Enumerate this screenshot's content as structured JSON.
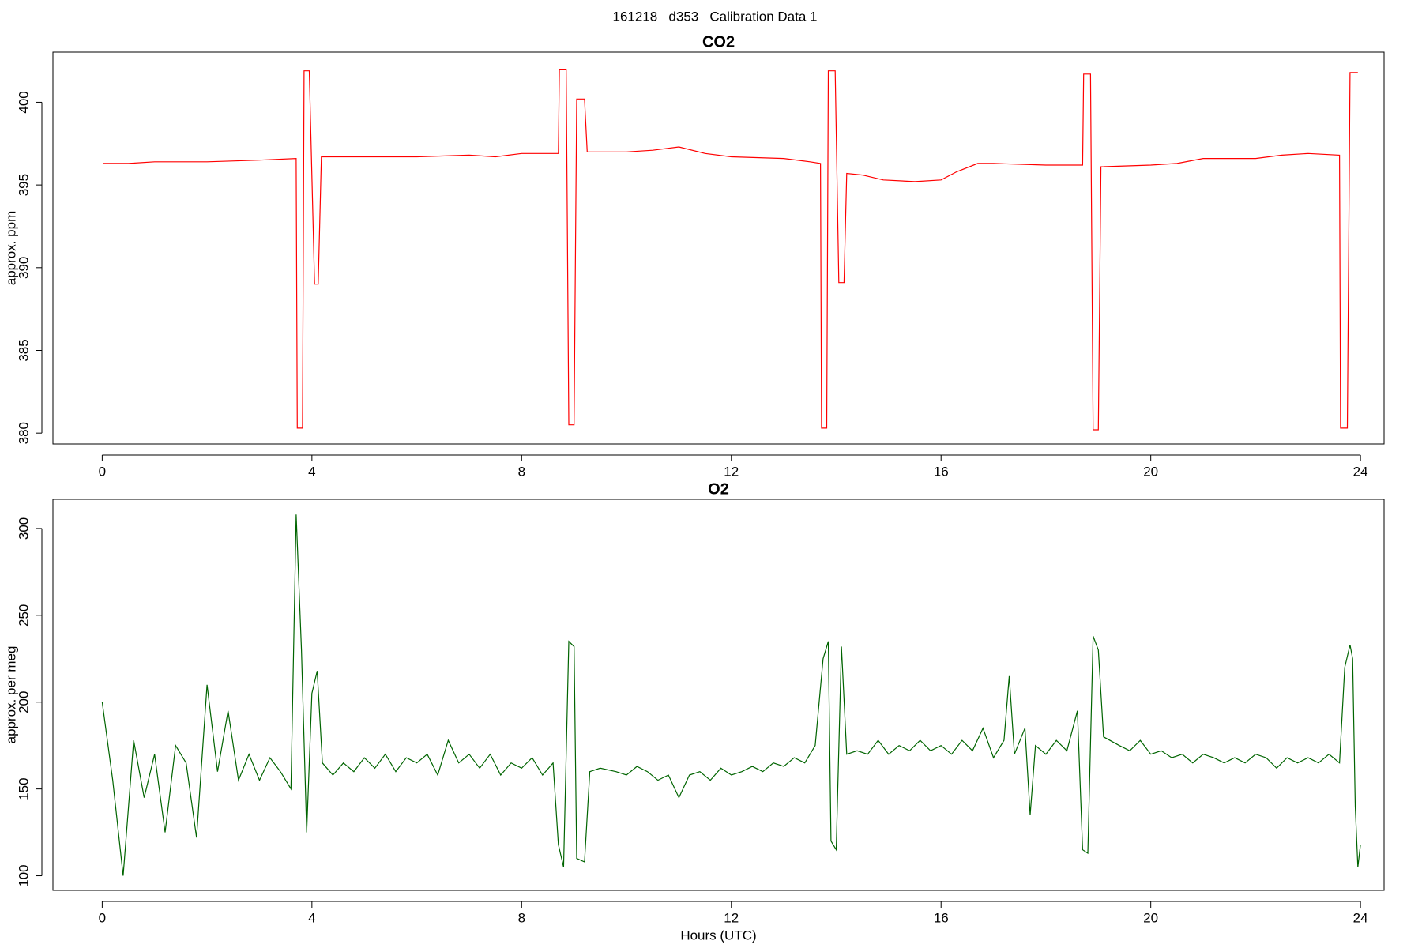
{
  "title": "161218   d353   Calibration Data 1",
  "chart_data": [
    {
      "type": "line",
      "title": "CO2",
      "ylabel": "approx. ppm",
      "color": "#ff0000",
      "xlim": [
        -0.94,
        24.45
      ],
      "xticks": [
        0,
        4,
        8,
        12,
        16,
        20,
        24
      ],
      "ylim": [
        379.34,
        403.03
      ],
      "yticks": [
        380,
        385,
        390,
        395,
        400
      ],
      "x": [
        0.02,
        0.5,
        1,
        2,
        3,
        3.7,
        3.72,
        3.82,
        3.85,
        3.95,
        4.05,
        4.12,
        4.18,
        5,
        6,
        7,
        7.5,
        8,
        8.7,
        8.72,
        8.85,
        8.9,
        9.0,
        9.05,
        9.2,
        9.25,
        10,
        10.5,
        11,
        11.5,
        12,
        13,
        13.5,
        13.7,
        13.72,
        13.82,
        13.85,
        13.98,
        14.05,
        14.15,
        14.2,
        14.5,
        14.9,
        15.5,
        16,
        16.3,
        16.7,
        17,
        18,
        18.7,
        18.72,
        18.85,
        18.9,
        19.0,
        19.05,
        20,
        20.5,
        21,
        22,
        22.5,
        23,
        23.6,
        23.62,
        23.75,
        23.8,
        23.95
      ],
      "values": [
        396.3,
        396.3,
        396.4,
        396.4,
        396.5,
        396.6,
        380.3,
        380.3,
        401.9,
        401.9,
        389,
        389,
        396.7,
        396.7,
        396.7,
        396.8,
        396.7,
        396.9,
        396.9,
        402,
        402,
        380.5,
        380.5,
        400.2,
        400.2,
        397,
        397,
        397.1,
        397.3,
        396.9,
        396.7,
        396.6,
        396.4,
        396.3,
        380.3,
        380.3,
        401.9,
        401.9,
        389.1,
        389.1,
        395.7,
        395.6,
        395.3,
        395.2,
        395.3,
        395.8,
        396.3,
        396.3,
        396.2,
        396.2,
        401.7,
        401.7,
        380.2,
        380.2,
        396.1,
        396.2,
        396.3,
        396.6,
        396.6,
        396.8,
        396.9,
        396.8,
        380.3,
        380.3,
        401.8,
        401.8
      ]
    },
    {
      "type": "line",
      "title": "O2",
      "ylabel": "approx. per meg",
      "xlabel": "Hours (UTC)",
      "color": "#006400",
      "xlim": [
        -0.94,
        24.45
      ],
      "xticks": [
        0,
        4,
        8,
        12,
        16,
        20,
        24
      ],
      "ylim": [
        91.6,
        316.8
      ],
      "yticks": [
        100,
        150,
        200,
        250,
        300
      ],
      "x": [
        0.0,
        0.2,
        0.4,
        0.6,
        0.8,
        1.0,
        1.2,
        1.4,
        1.6,
        1.8,
        2.0,
        2.2,
        2.4,
        2.6,
        2.8,
        3.0,
        3.2,
        3.4,
        3.6,
        3.7,
        3.8,
        3.9,
        4.0,
        4.1,
        4.2,
        4.4,
        4.6,
        4.8,
        5.0,
        5.2,
        5.4,
        5.6,
        5.8,
        6.0,
        6.2,
        6.4,
        6.6,
        6.8,
        7.0,
        7.2,
        7.4,
        7.6,
        7.8,
        8.0,
        8.2,
        8.4,
        8.6,
        8.7,
        8.8,
        8.9,
        9.0,
        9.05,
        9.2,
        9.3,
        9.5,
        9.8,
        10.0,
        10.2,
        10.4,
        10.6,
        10.8,
        11.0,
        11.2,
        11.4,
        11.6,
        11.8,
        12.0,
        12.2,
        12.4,
        12.6,
        12.8,
        13.0,
        13.2,
        13.4,
        13.6,
        13.75,
        13.85,
        13.9,
        14.0,
        14.1,
        14.2,
        14.4,
        14.6,
        14.8,
        15.0,
        15.2,
        15.4,
        15.6,
        15.8,
        16.0,
        16.2,
        16.4,
        16.6,
        16.8,
        17.0,
        17.2,
        17.3,
        17.4,
        17.6,
        17.7,
        17.8,
        18.0,
        18.2,
        18.4,
        18.6,
        18.7,
        18.8,
        18.9,
        19.0,
        19.1,
        19.4,
        19.6,
        19.8,
        20.0,
        20.2,
        20.4,
        20.6,
        20.8,
        21.0,
        21.2,
        21.4,
        21.6,
        21.8,
        22.0,
        22.2,
        22.4,
        22.6,
        22.8,
        23.0,
        23.2,
        23.4,
        23.6,
        23.7,
        23.8,
        23.85,
        23.9,
        23.95,
        24.0
      ],
      "values": [
        200,
        155,
        100,
        178,
        145,
        170,
        125,
        175,
        165,
        122,
        210,
        160,
        195,
        155,
        170,
        155,
        168,
        160,
        150,
        308,
        230,
        125,
        205,
        218,
        165,
        158,
        165,
        160,
        168,
        162,
        170,
        160,
        168,
        165,
        170,
        158,
        178,
        165,
        170,
        162,
        170,
        158,
        165,
        162,
        168,
        158,
        165,
        118,
        105,
        235,
        232,
        110,
        108,
        160,
        162,
        160,
        158,
        163,
        160,
        155,
        158,
        145,
        158,
        160,
        155,
        162,
        158,
        160,
        163,
        160,
        165,
        163,
        168,
        165,
        175,
        225,
        235,
        120,
        115,
        232,
        170,
        172,
        170,
        178,
        170,
        175,
        172,
        178,
        172,
        175,
        170,
        178,
        172,
        185,
        168,
        178,
        215,
        170,
        185,
        135,
        175,
        170,
        178,
        172,
        195,
        115,
        113,
        238,
        230,
        180,
        175,
        172,
        178,
        170,
        172,
        168,
        170,
        165,
        170,
        168,
        165,
        168,
        165,
        170,
        168,
        162,
        168,
        165,
        168,
        165,
        170,
        165,
        220,
        233,
        225,
        140,
        105,
        118
      ]
    }
  ]
}
